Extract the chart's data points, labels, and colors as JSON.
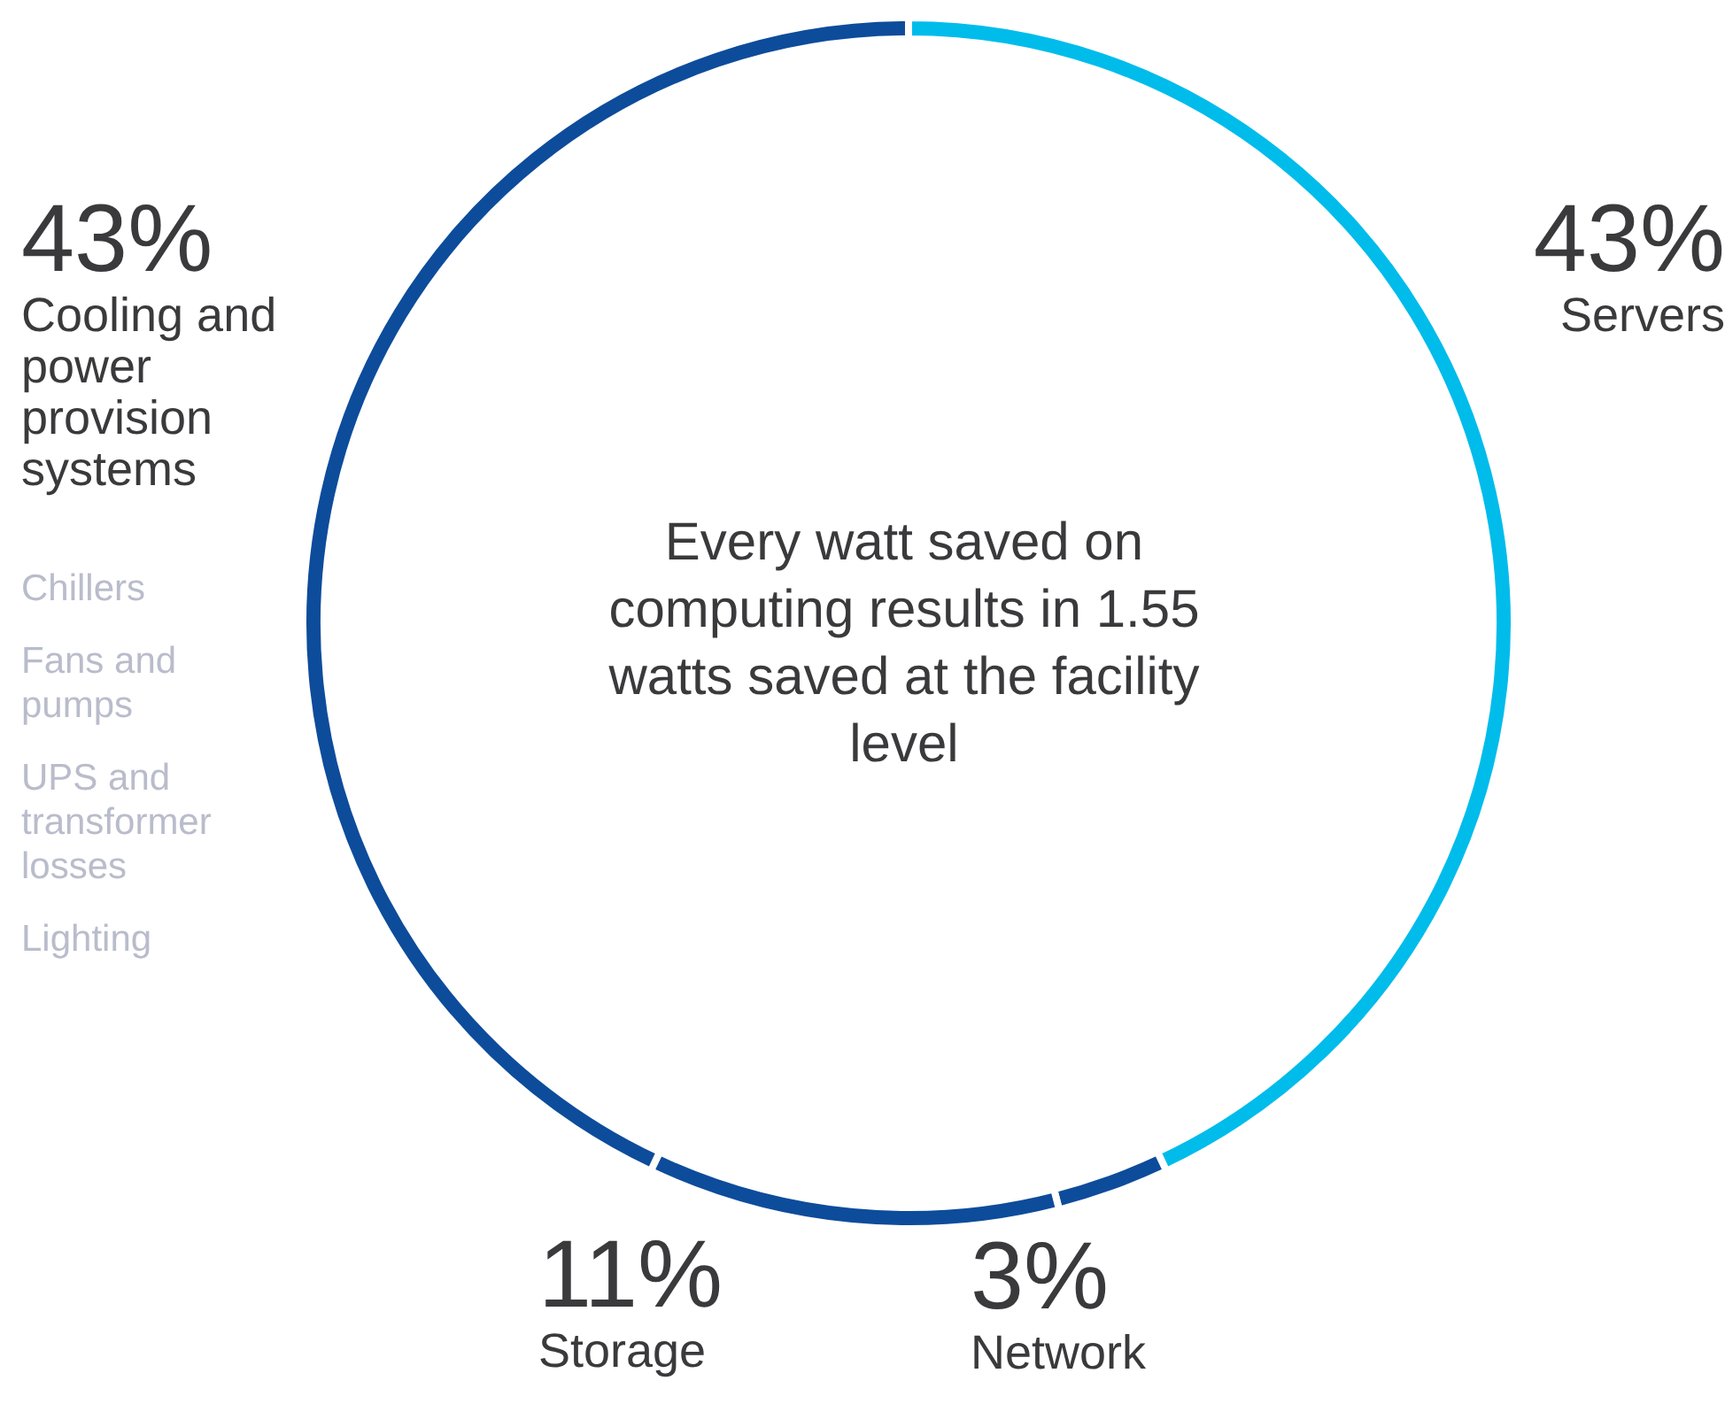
{
  "chart_data": {
    "type": "donut",
    "categories": [
      "Servers",
      "Network",
      "Storage",
      "Cooling and power provision systems"
    ],
    "values": [
      43,
      3,
      11,
      43
    ],
    "value_labels": [
      "43%",
      "3%",
      "11%",
      "43%"
    ],
    "colors": [
      "#00bceb",
      "#0d4c9b",
      "#0d4c9b",
      "#0d4c9b"
    ],
    "annotations": [
      "Every watt saved on computing results in 1.55 watts saved at the facility level",
      "Chillers",
      "Fans and pumps",
      "UPS and transformer losses",
      "Lighting"
    ],
    "legend": false
  }
}
